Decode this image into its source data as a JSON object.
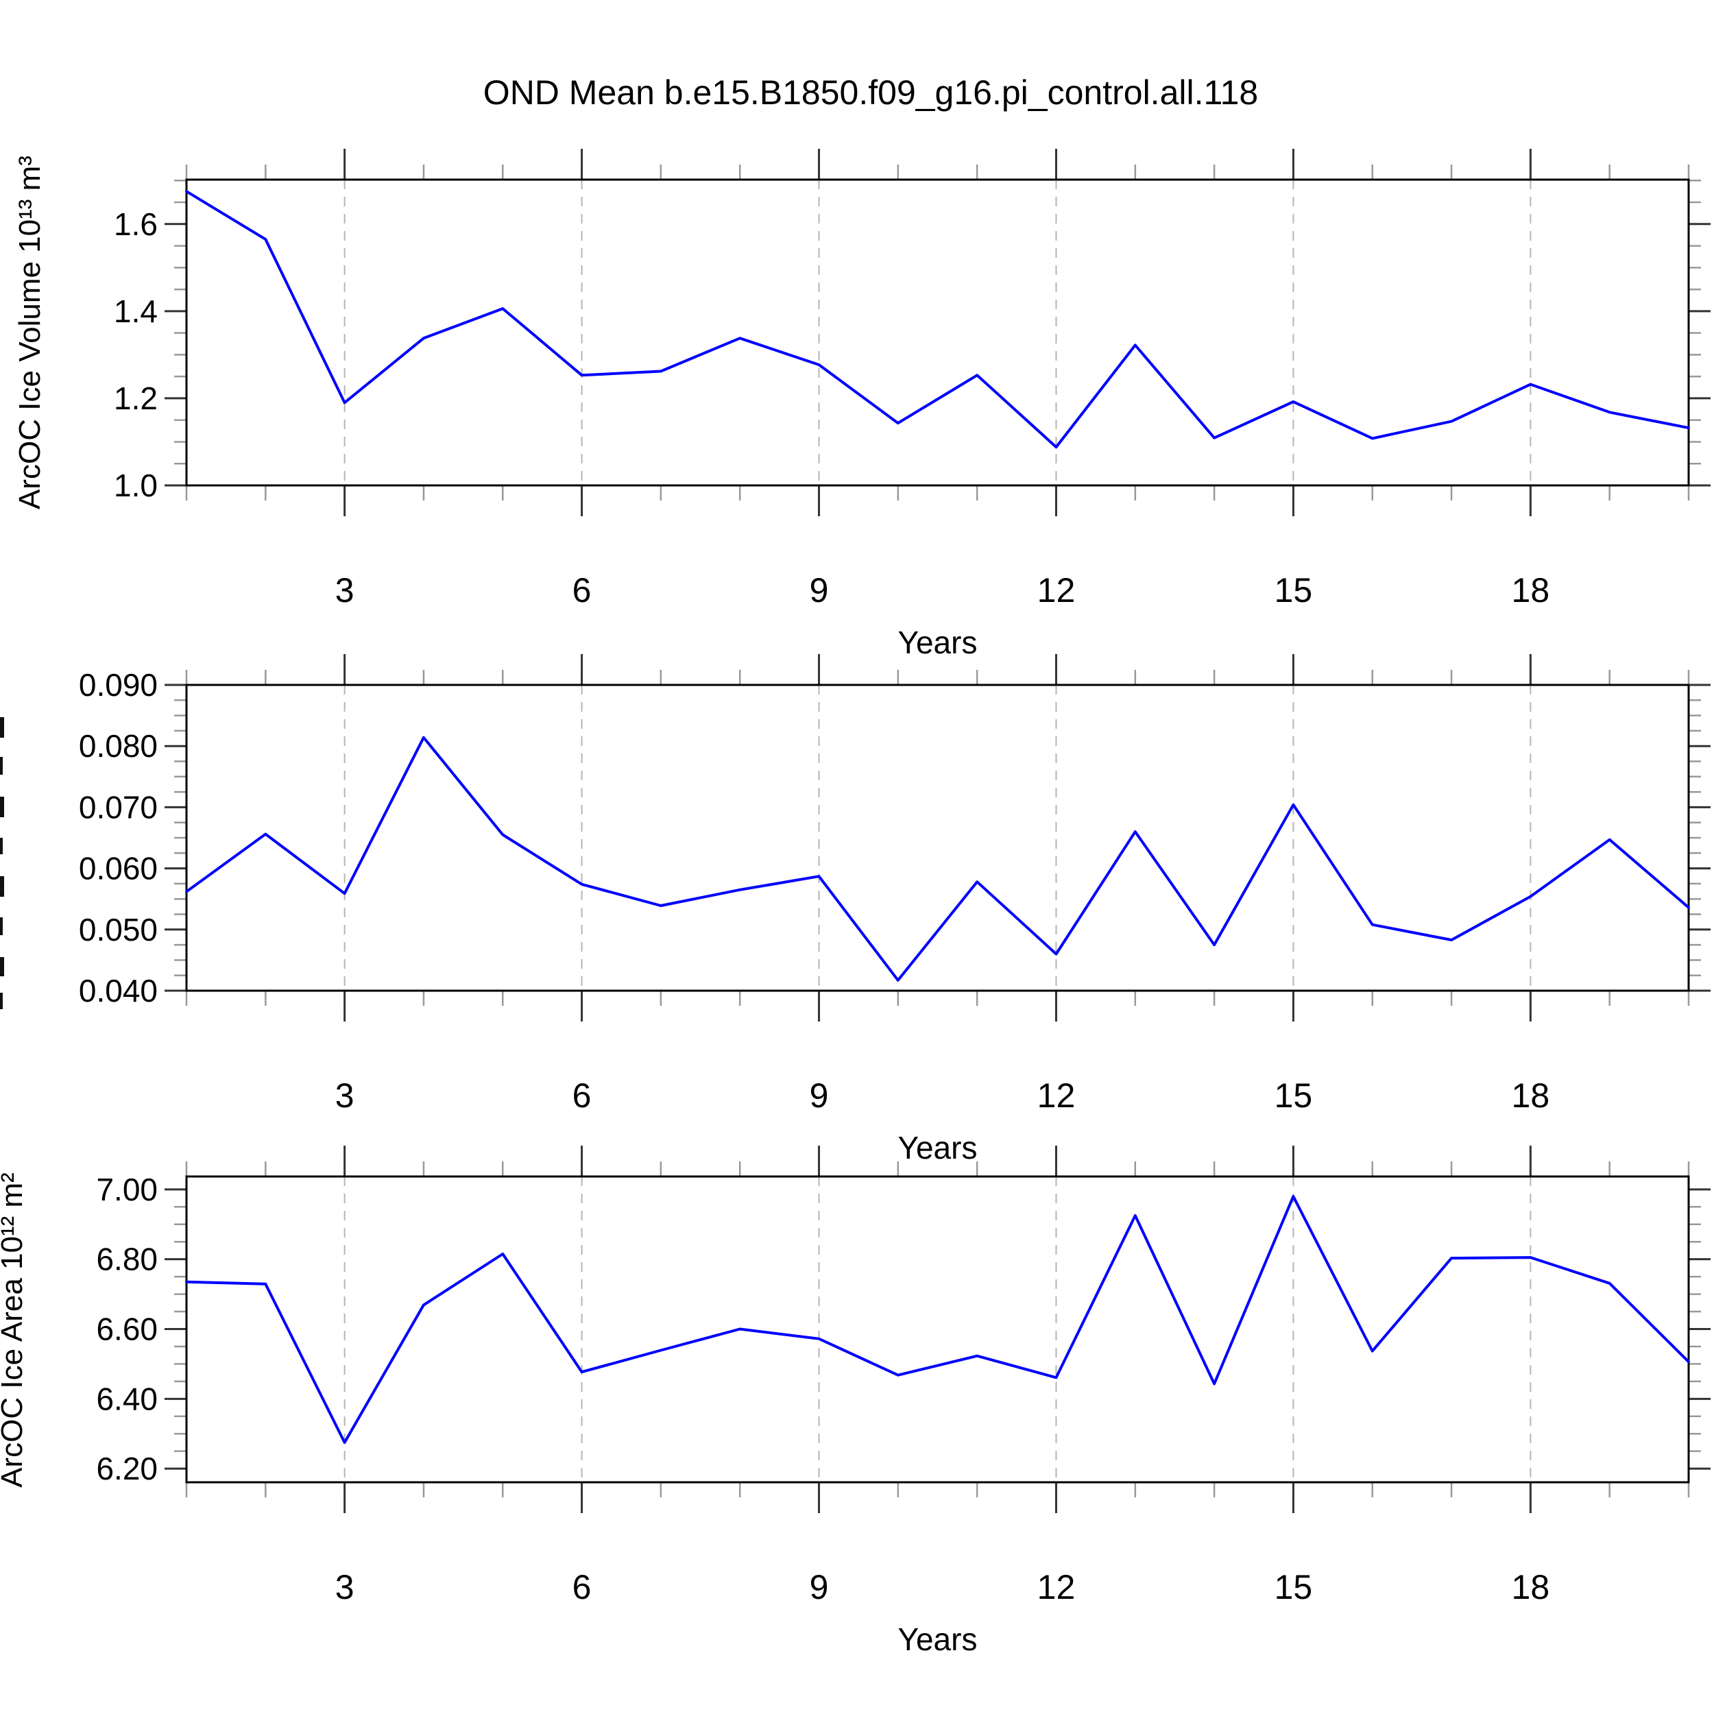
{
  "title": "OND Mean b.e15.B1850.f09_g16.pi_control.all.118",
  "colors": {
    "line": "#0000ff",
    "grid": "#b5b5b5",
    "major_tick": "#333333",
    "minor_tick": "#999999",
    "frame": "#000000"
  },
  "x_axis": {
    "label": "Years",
    "min": 1,
    "max": 20,
    "major_ticks": [
      3,
      6,
      9,
      12,
      15,
      18
    ],
    "major_tick_labels": [
      "3",
      "6",
      "9",
      "12",
      "15",
      "18"
    ],
    "minor_step": 1,
    "grid": true
  },
  "chart_data": [
    {
      "type": "line",
      "name": "arcoc-ice-volume",
      "ylabel": "ArcOC Ice Volume 10¹³ m³",
      "ylabel_clipped": false,
      "legend": "none",
      "x": [
        1,
        2,
        3,
        4,
        5,
        6,
        7,
        8,
        9,
        10,
        11,
        12,
        13,
        14,
        15,
        16,
        17,
        18,
        19,
        20
      ],
      "values": [
        1.675,
        1.565,
        1.19,
        1.338,
        1.406,
        1.253,
        1.262,
        1.338,
        1.277,
        1.143,
        1.253,
        1.088,
        1.322,
        1.109,
        1.192,
        1.108,
        1.147,
        1.232,
        1.168,
        1.132
      ],
      "ylim": [
        1.0,
        1.702
      ],
      "yticks": [
        1.0,
        1.2,
        1.4,
        1.6
      ],
      "ytick_labels": [
        "1.0",
        "1.2",
        "1.4",
        "1.6"
      ],
      "y_minor_step": 0.05
    },
    {
      "type": "line",
      "name": "arcoc-middle-series",
      "ylabel": "",
      "ylabel_clipped": true,
      "legend": "none",
      "x": [
        1,
        2,
        3,
        4,
        5,
        6,
        7,
        8,
        9,
        10,
        11,
        12,
        13,
        14,
        15,
        16,
        17,
        18,
        19,
        20
      ],
      "values": [
        0.0562,
        0.0656,
        0.0559,
        0.0814,
        0.0655,
        0.0574,
        0.0539,
        0.0565,
        0.0587,
        0.0417,
        0.0578,
        0.046,
        0.066,
        0.0475,
        0.0704,
        0.0508,
        0.0483,
        0.0554,
        0.0647,
        0.0536
      ],
      "ylim": [
        0.04,
        0.09
      ],
      "yticks": [
        0.04,
        0.05,
        0.06,
        0.07,
        0.08,
        0.09
      ],
      "ytick_labels": [
        "0.040",
        "0.050",
        "0.060",
        "0.070",
        "0.080",
        "0.090"
      ],
      "y_minor_step": 0.0025
    },
    {
      "type": "line",
      "name": "arcoc-ice-area",
      "ylabel": "ArcOC Ice Area 10¹² m²",
      "ylabel_clipped": false,
      "legend": "none",
      "x": [
        1,
        2,
        3,
        4,
        5,
        6,
        7,
        8,
        9,
        10,
        11,
        12,
        13,
        14,
        15,
        16,
        17,
        18,
        19,
        20
      ],
      "values": [
        6.735,
        6.729,
        6.275,
        6.669,
        6.815,
        6.477,
        6.539,
        6.6,
        6.572,
        6.468,
        6.523,
        6.461,
        6.925,
        6.443,
        6.98,
        6.537,
        6.803,
        6.805,
        6.731,
        6.506
      ],
      "ylim": [
        6.161,
        7.037
      ],
      "yticks": [
        6.2,
        6.4,
        6.6,
        6.8,
        7.0
      ],
      "ytick_labels": [
        "6.20",
        "6.40",
        "6.60",
        "6.80",
        "7.00"
      ],
      "y_minor_step": 0.05
    }
  ]
}
